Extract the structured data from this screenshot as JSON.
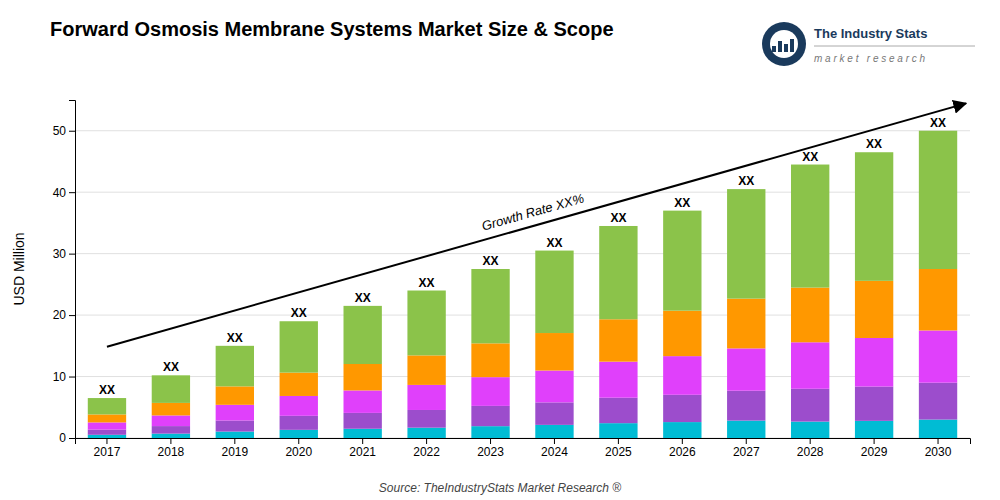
{
  "chart_data": {
    "type": "bar",
    "stacked": true,
    "title": "Forward Osmosis Membrane Systems Market Size & Scope",
    "ylabel": "USD Million",
    "source": "Source: TheIndustryStats Market Research ®",
    "annotation": "Growth Rate XX%",
    "bar_labels": [
      "XX",
      "XX",
      "XX",
      "XX",
      "XX",
      "XX",
      "XX",
      "XX",
      "XX",
      "XX",
      "XX",
      "XX",
      "XX",
      "XX"
    ],
    "logo_text": "The Industry Stats",
    "logo_subtext": "m a r k e t   r e s e a r c h",
    "categories": [
      "2017",
      "2018",
      "2019",
      "2020",
      "2021",
      "2022",
      "2023",
      "2024",
      "2025",
      "2026",
      "2027",
      "2028",
      "2029",
      "2030"
    ],
    "series": [
      {
        "color": "#00bcd4",
        "values": [
          0.52,
          0.714,
          1.05,
          1.33,
          1.505,
          1.68,
          1.925,
          2.135,
          2.415,
          2.59,
          2.835,
          2.67,
          2.79,
          3.0
        ]
      },
      {
        "color": "#9c4dcc",
        "values": [
          0.845,
          1.224,
          1.8,
          2.28,
          2.58,
          2.88,
          3.3,
          3.66,
          4.14,
          4.44,
          4.86,
          5.34,
          5.58,
          6.0
        ]
      },
      {
        "color": "#e040fb",
        "values": [
          1.17,
          1.734,
          2.55,
          3.23,
          3.655,
          4.08,
          4.675,
          5.185,
          5.865,
          6.29,
          6.885,
          7.565,
          7.905,
          8.5
        ]
      },
      {
        "color": "#ff9800",
        "values": [
          1.3,
          2.04,
          3.0,
          3.8,
          4.3,
          4.8,
          5.5,
          6.1,
          6.9,
          7.4,
          8.1,
          8.9,
          9.3,
          10.0
        ]
      },
      {
        "color": "#8bc34a",
        "values": [
          2.665,
          4.488,
          6.6,
          8.36,
          9.46,
          10.56,
          12.1,
          13.42,
          15.18,
          16.28,
          17.82,
          20.025,
          20.925,
          22.5
        ]
      }
    ],
    "ylim": [
      0,
      55
    ],
    "yticks": [
      0,
      10,
      20,
      30,
      40,
      50
    ],
    "grid": true
  }
}
